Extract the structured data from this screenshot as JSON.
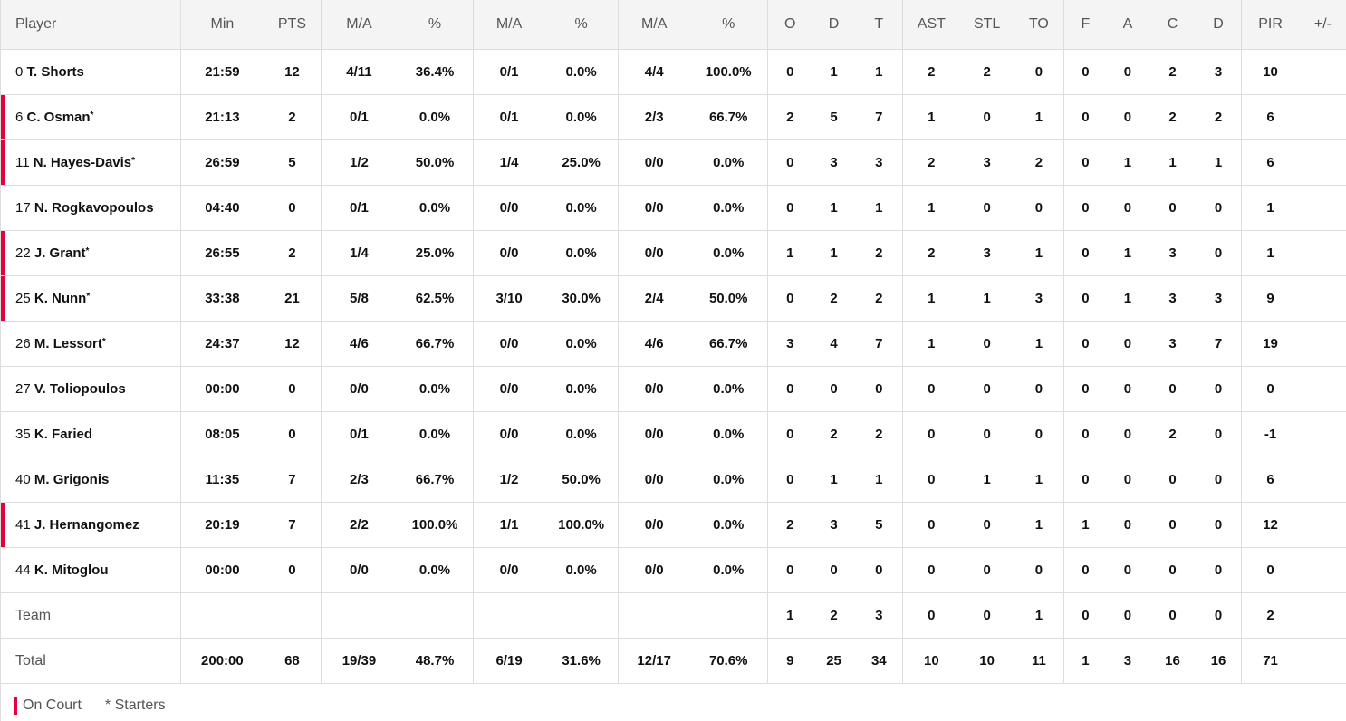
{
  "headers": [
    "Player",
    "Min",
    "PTS",
    "M/A",
    "%",
    "M/A",
    "%",
    "M/A",
    "%",
    "O",
    "D",
    "T",
    "AST",
    "STL",
    "TO",
    "F",
    "A",
    "C",
    "D",
    "PIR",
    "+/-"
  ],
  "players": [
    {
      "num": "0",
      "name": "T. Shorts",
      "starter": false,
      "on_court": false,
      "stats": [
        "21:59",
        "12",
        "4/11",
        "36.4%",
        "0/1",
        "0.0%",
        "4/4",
        "100.0%",
        "0",
        "1",
        "1",
        "2",
        "2",
        "0",
        "0",
        "0",
        "2",
        "3",
        "10",
        ""
      ]
    },
    {
      "num": "6",
      "name": "C. Osman",
      "starter": true,
      "on_court": true,
      "stats": [
        "21:13",
        "2",
        "0/1",
        "0.0%",
        "0/1",
        "0.0%",
        "2/3",
        "66.7%",
        "2",
        "5",
        "7",
        "1",
        "0",
        "1",
        "0",
        "0",
        "2",
        "2",
        "6",
        ""
      ]
    },
    {
      "num": "11",
      "name": "N. Hayes-Davis",
      "starter": true,
      "on_court": true,
      "stats": [
        "26:59",
        "5",
        "1/2",
        "50.0%",
        "1/4",
        "25.0%",
        "0/0",
        "0.0%",
        "0",
        "3",
        "3",
        "2",
        "3",
        "2",
        "0",
        "1",
        "1",
        "1",
        "6",
        ""
      ]
    },
    {
      "num": "17",
      "name": "N. Rogkavopoulos",
      "starter": false,
      "on_court": false,
      "stats": [
        "04:40",
        "0",
        "0/1",
        "0.0%",
        "0/0",
        "0.0%",
        "0/0",
        "0.0%",
        "0",
        "1",
        "1",
        "1",
        "0",
        "0",
        "0",
        "0",
        "0",
        "0",
        "1",
        ""
      ]
    },
    {
      "num": "22",
      "name": "J. Grant",
      "starter": true,
      "on_court": true,
      "stats": [
        "26:55",
        "2",
        "1/4",
        "25.0%",
        "0/0",
        "0.0%",
        "0/0",
        "0.0%",
        "1",
        "1",
        "2",
        "2",
        "3",
        "1",
        "0",
        "1",
        "3",
        "0",
        "1",
        ""
      ]
    },
    {
      "num": "25",
      "name": "K. Nunn",
      "starter": true,
      "on_court": true,
      "stats": [
        "33:38",
        "21",
        "5/8",
        "62.5%",
        "3/10",
        "30.0%",
        "2/4",
        "50.0%",
        "0",
        "2",
        "2",
        "1",
        "1",
        "3",
        "0",
        "1",
        "3",
        "3",
        "9",
        ""
      ]
    },
    {
      "num": "26",
      "name": "M. Lessort",
      "starter": true,
      "on_court": false,
      "stats": [
        "24:37",
        "12",
        "4/6",
        "66.7%",
        "0/0",
        "0.0%",
        "4/6",
        "66.7%",
        "3",
        "4",
        "7",
        "1",
        "0",
        "1",
        "0",
        "0",
        "3",
        "7",
        "19",
        ""
      ]
    },
    {
      "num": "27",
      "name": "V. Toliopoulos",
      "starter": false,
      "on_court": false,
      "stats": [
        "00:00",
        "0",
        "0/0",
        "0.0%",
        "0/0",
        "0.0%",
        "0/0",
        "0.0%",
        "0",
        "0",
        "0",
        "0",
        "0",
        "0",
        "0",
        "0",
        "0",
        "0",
        "0",
        ""
      ]
    },
    {
      "num": "35",
      "name": "K. Faried",
      "starter": false,
      "on_court": false,
      "stats": [
        "08:05",
        "0",
        "0/1",
        "0.0%",
        "0/0",
        "0.0%",
        "0/0",
        "0.0%",
        "0",
        "2",
        "2",
        "0",
        "0",
        "0",
        "0",
        "0",
        "2",
        "0",
        "-1",
        ""
      ]
    },
    {
      "num": "40",
      "name": "M. Grigonis",
      "starter": false,
      "on_court": false,
      "stats": [
        "11:35",
        "7",
        "2/3",
        "66.7%",
        "1/2",
        "50.0%",
        "0/0",
        "0.0%",
        "0",
        "1",
        "1",
        "0",
        "1",
        "1",
        "0",
        "0",
        "0",
        "0",
        "6",
        ""
      ]
    },
    {
      "num": "41",
      "name": "J. Hernangomez",
      "starter": false,
      "on_court": true,
      "stats": [
        "20:19",
        "7",
        "2/2",
        "100.0%",
        "1/1",
        "100.0%",
        "0/0",
        "0.0%",
        "2",
        "3",
        "5",
        "0",
        "0",
        "1",
        "1",
        "0",
        "0",
        "0",
        "12",
        ""
      ]
    },
    {
      "num": "44",
      "name": "K. Mitoglou",
      "starter": false,
      "on_court": false,
      "stats": [
        "00:00",
        "0",
        "0/0",
        "0.0%",
        "0/0",
        "0.0%",
        "0/0",
        "0.0%",
        "0",
        "0",
        "0",
        "0",
        "0",
        "0",
        "0",
        "0",
        "0",
        "0",
        "0",
        ""
      ]
    }
  ],
  "team": {
    "label": "Team",
    "stats": [
      "",
      "",
      "",
      "",
      "",
      "",
      "",
      "",
      "1",
      "2",
      "3",
      "0",
      "0",
      "1",
      "0",
      "0",
      "0",
      "0",
      "2",
      ""
    ]
  },
  "total": {
    "label": "Total",
    "stats": [
      "200:00",
      "68",
      "19/39",
      "48.7%",
      "6/19",
      "31.6%",
      "12/17",
      "70.6%",
      "9",
      "25",
      "34",
      "10",
      "10",
      "11",
      "1",
      "3",
      "16",
      "16",
      "71",
      ""
    ]
  },
  "legend": {
    "on_court": "On Court",
    "starters": "* Starters",
    "star": "*"
  },
  "colors": {
    "on_court": "#e4003b"
  }
}
